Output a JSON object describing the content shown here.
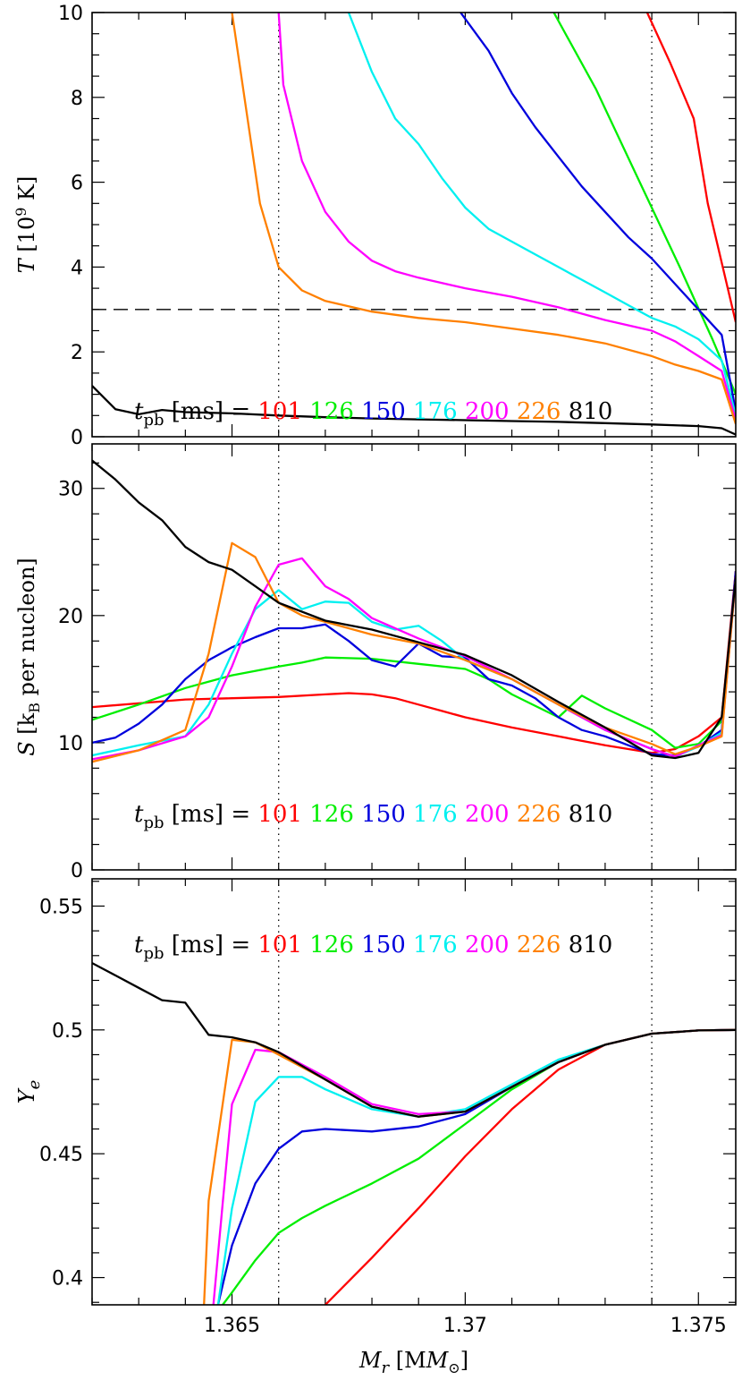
{
  "colors": {
    "t101": "#ff0000",
    "t126": "#00ee00",
    "t150": "#0000dd",
    "t176": "#00f0f0",
    "t200": "#ff00ff",
    "t226": "#ff8000",
    "t810": "#000000"
  },
  "legend": {
    "prefix_symbol": "t",
    "prefix_sub": "pb",
    "prefix_unit": "[ms] =",
    "entries": [
      "101",
      "126",
      "150",
      "176",
      "200",
      "226",
      "810"
    ]
  },
  "xaxis": {
    "label_main": "M",
    "label_sub": "r",
    "label_unit": "[M",
    "label_unit_sub": "⊙",
    "label_close": "]",
    "range": [
      1.362,
      1.3758
    ],
    "ticks": [
      1.365,
      1.37,
      1.375
    ],
    "tick_labels": [
      "1.365",
      "1.37",
      "1.375"
    ],
    "minor_step": 0.001
  },
  "chart_data": [
    {
      "id": "temperature",
      "type": "line",
      "ylabel_main": "T",
      "ylabel_unit": "[10",
      "ylabel_exp": "9",
      "ylabel_close": " K]",
      "ylim": [
        0,
        10
      ],
      "yticks": [
        0,
        2,
        4,
        6,
        8,
        10
      ],
      "ytick_labels": [
        "0",
        "2",
        "4",
        "6",
        "8",
        "10"
      ],
      "yminor_step": 0.5,
      "hline": 3,
      "vlines": [
        1.366,
        1.374
      ],
      "series": [
        {
          "name": "101",
          "key": "t101",
          "x": [
            1.3739,
            1.3744,
            1.3749,
            1.3752,
            1.3758
          ],
          "y": [
            10.0,
            8.8,
            7.5,
            5.5,
            2.7
          ]
        },
        {
          "name": "126",
          "key": "t126",
          "x": [
            1.3719,
            1.3728,
            1.3737,
            1.3746,
            1.3753,
            1.3758
          ],
          "y": [
            10.0,
            8.2,
            6.1,
            4.0,
            2.3,
            1.0
          ]
        },
        {
          "name": "150",
          "key": "t150",
          "x": [
            1.3699,
            1.3705,
            1.371,
            1.3715,
            1.372,
            1.3725,
            1.373,
            1.3735,
            1.374,
            1.3745,
            1.375,
            1.3755,
            1.3758
          ],
          "y": [
            10.0,
            9.1,
            8.1,
            7.3,
            6.6,
            5.9,
            5.3,
            4.7,
            4.2,
            3.6,
            3.0,
            2.4,
            0.6
          ]
        },
        {
          "name": "176",
          "key": "t176",
          "x": [
            1.3675,
            1.368,
            1.3685,
            1.369,
            1.3695,
            1.37,
            1.3705,
            1.371,
            1.3715,
            1.372,
            1.3725,
            1.373,
            1.3735,
            1.374,
            1.3745,
            1.375,
            1.3755,
            1.3758
          ],
          "y": [
            10.0,
            8.6,
            7.5,
            6.9,
            6.1,
            5.4,
            4.9,
            4.6,
            4.3,
            4.0,
            3.7,
            3.4,
            3.1,
            2.8,
            2.6,
            2.3,
            1.8,
            0.5
          ]
        },
        {
          "name": "200",
          "key": "t200",
          "x": [
            1.366,
            1.3661,
            1.3665,
            1.367,
            1.3675,
            1.368,
            1.3685,
            1.369,
            1.37,
            1.371,
            1.372,
            1.373,
            1.374,
            1.3745,
            1.375,
            1.3755,
            1.3758
          ],
          "y": [
            10.0,
            8.3,
            6.5,
            5.3,
            4.6,
            4.15,
            3.9,
            3.75,
            3.5,
            3.3,
            3.05,
            2.75,
            2.5,
            2.25,
            1.9,
            1.55,
            0.4
          ]
        },
        {
          "name": "226",
          "key": "t226",
          "x": [
            1.365,
            1.3656,
            1.366,
            1.3665,
            1.367,
            1.368,
            1.369,
            1.37,
            1.371,
            1.372,
            1.373,
            1.374,
            1.3745,
            1.375,
            1.3755,
            1.3758
          ],
          "y": [
            10.0,
            5.5,
            4.0,
            3.45,
            3.2,
            2.95,
            2.8,
            2.7,
            2.55,
            2.4,
            2.2,
            1.9,
            1.7,
            1.55,
            1.35,
            0.3
          ]
        },
        {
          "name": "810",
          "key": "t810",
          "x": [
            1.362,
            1.3625,
            1.363,
            1.3635,
            1.364,
            1.365,
            1.366,
            1.367,
            1.368,
            1.369,
            1.37,
            1.371,
            1.372,
            1.373,
            1.374,
            1.375,
            1.3755,
            1.3758
          ],
          "y": [
            1.2,
            0.65,
            0.53,
            0.63,
            0.58,
            0.55,
            0.5,
            0.46,
            0.43,
            0.41,
            0.39,
            0.37,
            0.35,
            0.32,
            0.29,
            0.25,
            0.2,
            0.05
          ]
        }
      ]
    },
    {
      "id": "entropy",
      "type": "line",
      "ylabel_main": "S",
      "ylabel_unit": "[k",
      "ylabel_sub": "B",
      "ylabel_close": " per nucleon]",
      "ylim": [
        0,
        33.5
      ],
      "yticks": [
        0,
        10,
        20,
        30
      ],
      "ytick_labels": [
        "0",
        "10",
        "20",
        "30"
      ],
      "yminor_step": 2,
      "vlines": [
        1.366,
        1.374
      ],
      "series": [
        {
          "name": "101",
          "key": "t101",
          "x": [
            1.362,
            1.363,
            1.364,
            1.365,
            1.366,
            1.367,
            1.3675,
            1.368,
            1.3685,
            1.369,
            1.3695,
            1.37,
            1.371,
            1.372,
            1.373,
            1.374,
            1.3745,
            1.375,
            1.3755,
            1.3758
          ],
          "y": [
            12.8,
            13.1,
            13.4,
            13.5,
            13.6,
            13.8,
            13.9,
            13.8,
            13.5,
            13.0,
            12.5,
            12.0,
            11.2,
            10.5,
            9.8,
            9.2,
            9.5,
            10.5,
            12.0,
            23.5
          ]
        },
        {
          "name": "126",
          "key": "t126",
          "x": [
            1.362,
            1.363,
            1.364,
            1.365,
            1.366,
            1.3665,
            1.367,
            1.368,
            1.369,
            1.37,
            1.3705,
            1.371,
            1.372,
            1.3725,
            1.373,
            1.374,
            1.3745,
            1.375,
            1.3755,
            1.3758
          ],
          "y": [
            11.8,
            13.0,
            14.3,
            15.3,
            16.0,
            16.3,
            16.7,
            16.6,
            16.2,
            15.8,
            15.0,
            13.8,
            12.0,
            13.7,
            12.7,
            11.0,
            9.6,
            9.9,
            11.7,
            23.0
          ]
        },
        {
          "name": "150",
          "key": "t150",
          "x": [
            1.362,
            1.3625,
            1.363,
            1.3635,
            1.364,
            1.3645,
            1.365,
            1.3655,
            1.366,
            1.3665,
            1.367,
            1.3675,
            1.368,
            1.3685,
            1.369,
            1.3695,
            1.37,
            1.3705,
            1.371,
            1.3715,
            1.372,
            1.3725,
            1.373,
            1.3735,
            1.374,
            1.3745,
            1.375,
            1.3755,
            1.3758
          ],
          "y": [
            10.0,
            10.4,
            11.5,
            13.0,
            15.0,
            16.5,
            17.5,
            18.3,
            19.0,
            19.0,
            19.3,
            18.0,
            16.5,
            16.0,
            17.8,
            16.8,
            16.7,
            15.0,
            14.5,
            13.5,
            12.0,
            11.0,
            10.5,
            9.8,
            9.1,
            9.0,
            9.7,
            11.0,
            23.5
          ]
        },
        {
          "name": "176",
          "key": "t176",
          "x": [
            1.362,
            1.363,
            1.364,
            1.3645,
            1.365,
            1.3655,
            1.366,
            1.3665,
            1.367,
            1.3675,
            1.368,
            1.3685,
            1.369,
            1.3695,
            1.37,
            1.371,
            1.372,
            1.373,
            1.374,
            1.3745,
            1.375,
            1.3755,
            1.3758
          ],
          "y": [
            9.0,
            9.8,
            10.5,
            13.0,
            17.0,
            20.5,
            22.0,
            20.5,
            21.1,
            21.0,
            19.5,
            18.9,
            19.2,
            18.0,
            16.5,
            15.0,
            13.0,
            11.0,
            9.5,
            8.9,
            9.7,
            10.8,
            23.0
          ]
        },
        {
          "name": "200",
          "key": "t200",
          "x": [
            1.362,
            1.363,
            1.364,
            1.3645,
            1.365,
            1.3655,
            1.366,
            1.3665,
            1.367,
            1.3675,
            1.368,
            1.369,
            1.37,
            1.371,
            1.372,
            1.373,
            1.374,
            1.3745,
            1.375,
            1.3755,
            1.3758
          ],
          "y": [
            8.7,
            9.4,
            10.5,
            12.0,
            16.0,
            20.7,
            24.0,
            24.5,
            22.3,
            21.3,
            19.8,
            18.2,
            16.8,
            15.0,
            13.0,
            11.0,
            9.5,
            8.9,
            9.8,
            10.6,
            23.0
          ]
        },
        {
          "name": "226",
          "key": "t226",
          "x": [
            1.362,
            1.363,
            1.364,
            1.3645,
            1.365,
            1.3655,
            1.366,
            1.3665,
            1.367,
            1.3675,
            1.368,
            1.369,
            1.37,
            1.371,
            1.372,
            1.373,
            1.374,
            1.3745,
            1.375,
            1.3755,
            1.3758
          ],
          "y": [
            8.5,
            9.4,
            11.0,
            17.0,
            25.7,
            24.6,
            21.0,
            20.0,
            19.5,
            19.0,
            18.5,
            17.8,
            16.5,
            15.0,
            13.0,
            11.2,
            9.9,
            9.1,
            9.7,
            10.5,
            23.0
          ]
        },
        {
          "name": "810",
          "key": "t810",
          "x": [
            1.362,
            1.3625,
            1.363,
            1.3635,
            1.364,
            1.3645,
            1.365,
            1.3655,
            1.366,
            1.367,
            1.368,
            1.369,
            1.37,
            1.371,
            1.372,
            1.373,
            1.374,
            1.3745,
            1.375,
            1.3755,
            1.3758
          ],
          "y": [
            32.2,
            30.7,
            28.9,
            27.5,
            25.4,
            24.2,
            23.6,
            22.3,
            21.0,
            19.6,
            18.9,
            17.9,
            16.9,
            15.3,
            13.2,
            11.2,
            9.0,
            8.8,
            9.2,
            12.0,
            23.0
          ]
        }
      ]
    },
    {
      "id": "electron-fraction",
      "type": "line",
      "ylabel_main": "Y",
      "ylabel_sub": "e",
      "ylim": [
        0.389,
        0.561
      ],
      "yticks": [
        0.4,
        0.45,
        0.5,
        0.55
      ],
      "ytick_labels": [
        "0.4",
        "0.45",
        "0.5",
        "0.55"
      ],
      "yminor_step": 0.01,
      "vlines": [
        1.366,
        1.374
      ],
      "series": [
        {
          "name": "101",
          "key": "t101",
          "x": [
            1.367,
            1.368,
            1.369,
            1.37,
            1.371,
            1.372,
            1.373,
            1.374,
            1.375,
            1.3758
          ],
          "y": [
            0.389,
            0.408,
            0.428,
            0.449,
            0.468,
            0.484,
            0.494,
            0.4985,
            0.4998,
            0.5
          ]
        },
        {
          "name": "126",
          "key": "t126",
          "x": [
            1.3648,
            1.365,
            1.3655,
            1.366,
            1.3665,
            1.367,
            1.368,
            1.369,
            1.37,
            1.371,
            1.372,
            1.373,
            1.374,
            1.375,
            1.3758
          ],
          "y": [
            0.389,
            0.394,
            0.407,
            0.418,
            0.424,
            0.429,
            0.438,
            0.448,
            0.462,
            0.476,
            0.487,
            0.494,
            0.4985,
            0.4998,
            0.5
          ]
        },
        {
          "name": "150",
          "key": "t150",
          "x": [
            1.3647,
            1.365,
            1.3655,
            1.366,
            1.3665,
            1.367,
            1.368,
            1.369,
            1.37,
            1.371,
            1.372,
            1.373,
            1.374,
            1.375,
            1.3758
          ],
          "y": [
            0.389,
            0.413,
            0.438,
            0.452,
            0.459,
            0.46,
            0.459,
            0.461,
            0.466,
            0.477,
            0.487,
            0.494,
            0.4985,
            0.4998,
            0.5
          ]
        },
        {
          "name": "176",
          "key": "t176",
          "x": [
            1.3647,
            1.365,
            1.3655,
            1.366,
            1.3665,
            1.367,
            1.368,
            1.369,
            1.37,
            1.371,
            1.372,
            1.373,
            1.374,
            1.375,
            1.3758
          ],
          "y": [
            0.389,
            0.428,
            0.471,
            0.481,
            0.481,
            0.476,
            0.468,
            0.465,
            0.468,
            0.478,
            0.488,
            0.494,
            0.4985,
            0.4998,
            0.5
          ]
        },
        {
          "name": "200",
          "key": "t200",
          "x": [
            1.3646,
            1.3648,
            1.365,
            1.3655,
            1.366,
            1.367,
            1.368,
            1.369,
            1.37,
            1.371,
            1.372,
            1.373,
            1.374,
            1.375,
            1.3758
          ],
          "y": [
            0.389,
            0.43,
            0.47,
            0.492,
            0.491,
            0.481,
            0.47,
            0.466,
            0.467,
            0.477,
            0.487,
            0.494,
            0.4985,
            0.4998,
            0.5
          ]
        },
        {
          "name": "226",
          "key": "t226",
          "x": [
            1.3644,
            1.3645,
            1.365,
            1.3655,
            1.366,
            1.367,
            1.368,
            1.369,
            1.37,
            1.371,
            1.372,
            1.373,
            1.374,
            1.375,
            1.3758
          ],
          "y": [
            0.389,
            0.431,
            0.496,
            0.495,
            0.49,
            0.48,
            0.469,
            0.465,
            0.467,
            0.477,
            0.487,
            0.494,
            0.4985,
            0.4998,
            0.5
          ]
        },
        {
          "name": "810",
          "key": "t810",
          "x": [
            1.362,
            1.3625,
            1.363,
            1.3635,
            1.364,
            1.3645,
            1.365,
            1.3655,
            1.366,
            1.367,
            1.368,
            1.369,
            1.37,
            1.371,
            1.372,
            1.373,
            1.374,
            1.375,
            1.3758
          ],
          "y": [
            0.527,
            0.522,
            0.517,
            0.512,
            0.511,
            0.498,
            0.497,
            0.495,
            0.491,
            0.48,
            0.469,
            0.465,
            0.467,
            0.477,
            0.487,
            0.494,
            0.4985,
            0.4998,
            0.5
          ]
        }
      ]
    }
  ]
}
